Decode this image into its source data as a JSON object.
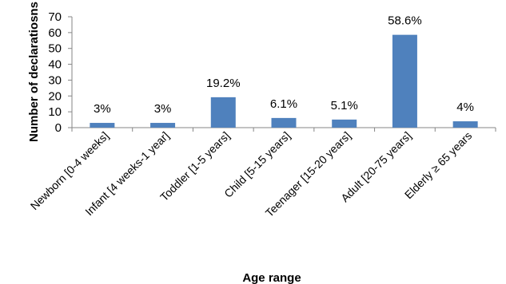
{
  "chart_data": {
    "type": "bar",
    "categories": [
      "Newborn  [0-4 weeks]",
      "Infant  [4 weeks-1 year]",
      "Toddler  [1-5 years]",
      "Child [5-15 years]",
      "Teenager [15-20 years]",
      "Adult  [20-75 years]",
      "Elderly ≥ 65 years"
    ],
    "values": [
      3,
      3,
      19.2,
      6.1,
      5.1,
      58.6,
      4
    ],
    "data_labels": [
      "3%",
      "3%",
      "19.2%",
      "6.1%",
      "5.1%",
      "58.6%",
      "4%"
    ],
    "xlabel": "Age range",
    "ylabel": "Number of declaratiosns",
    "ylim": [
      0,
      70
    ],
    "yticks": [
      0,
      10,
      20,
      30,
      40,
      50,
      60,
      70
    ],
    "grid": false,
    "bar_color": "#4f81bd"
  }
}
